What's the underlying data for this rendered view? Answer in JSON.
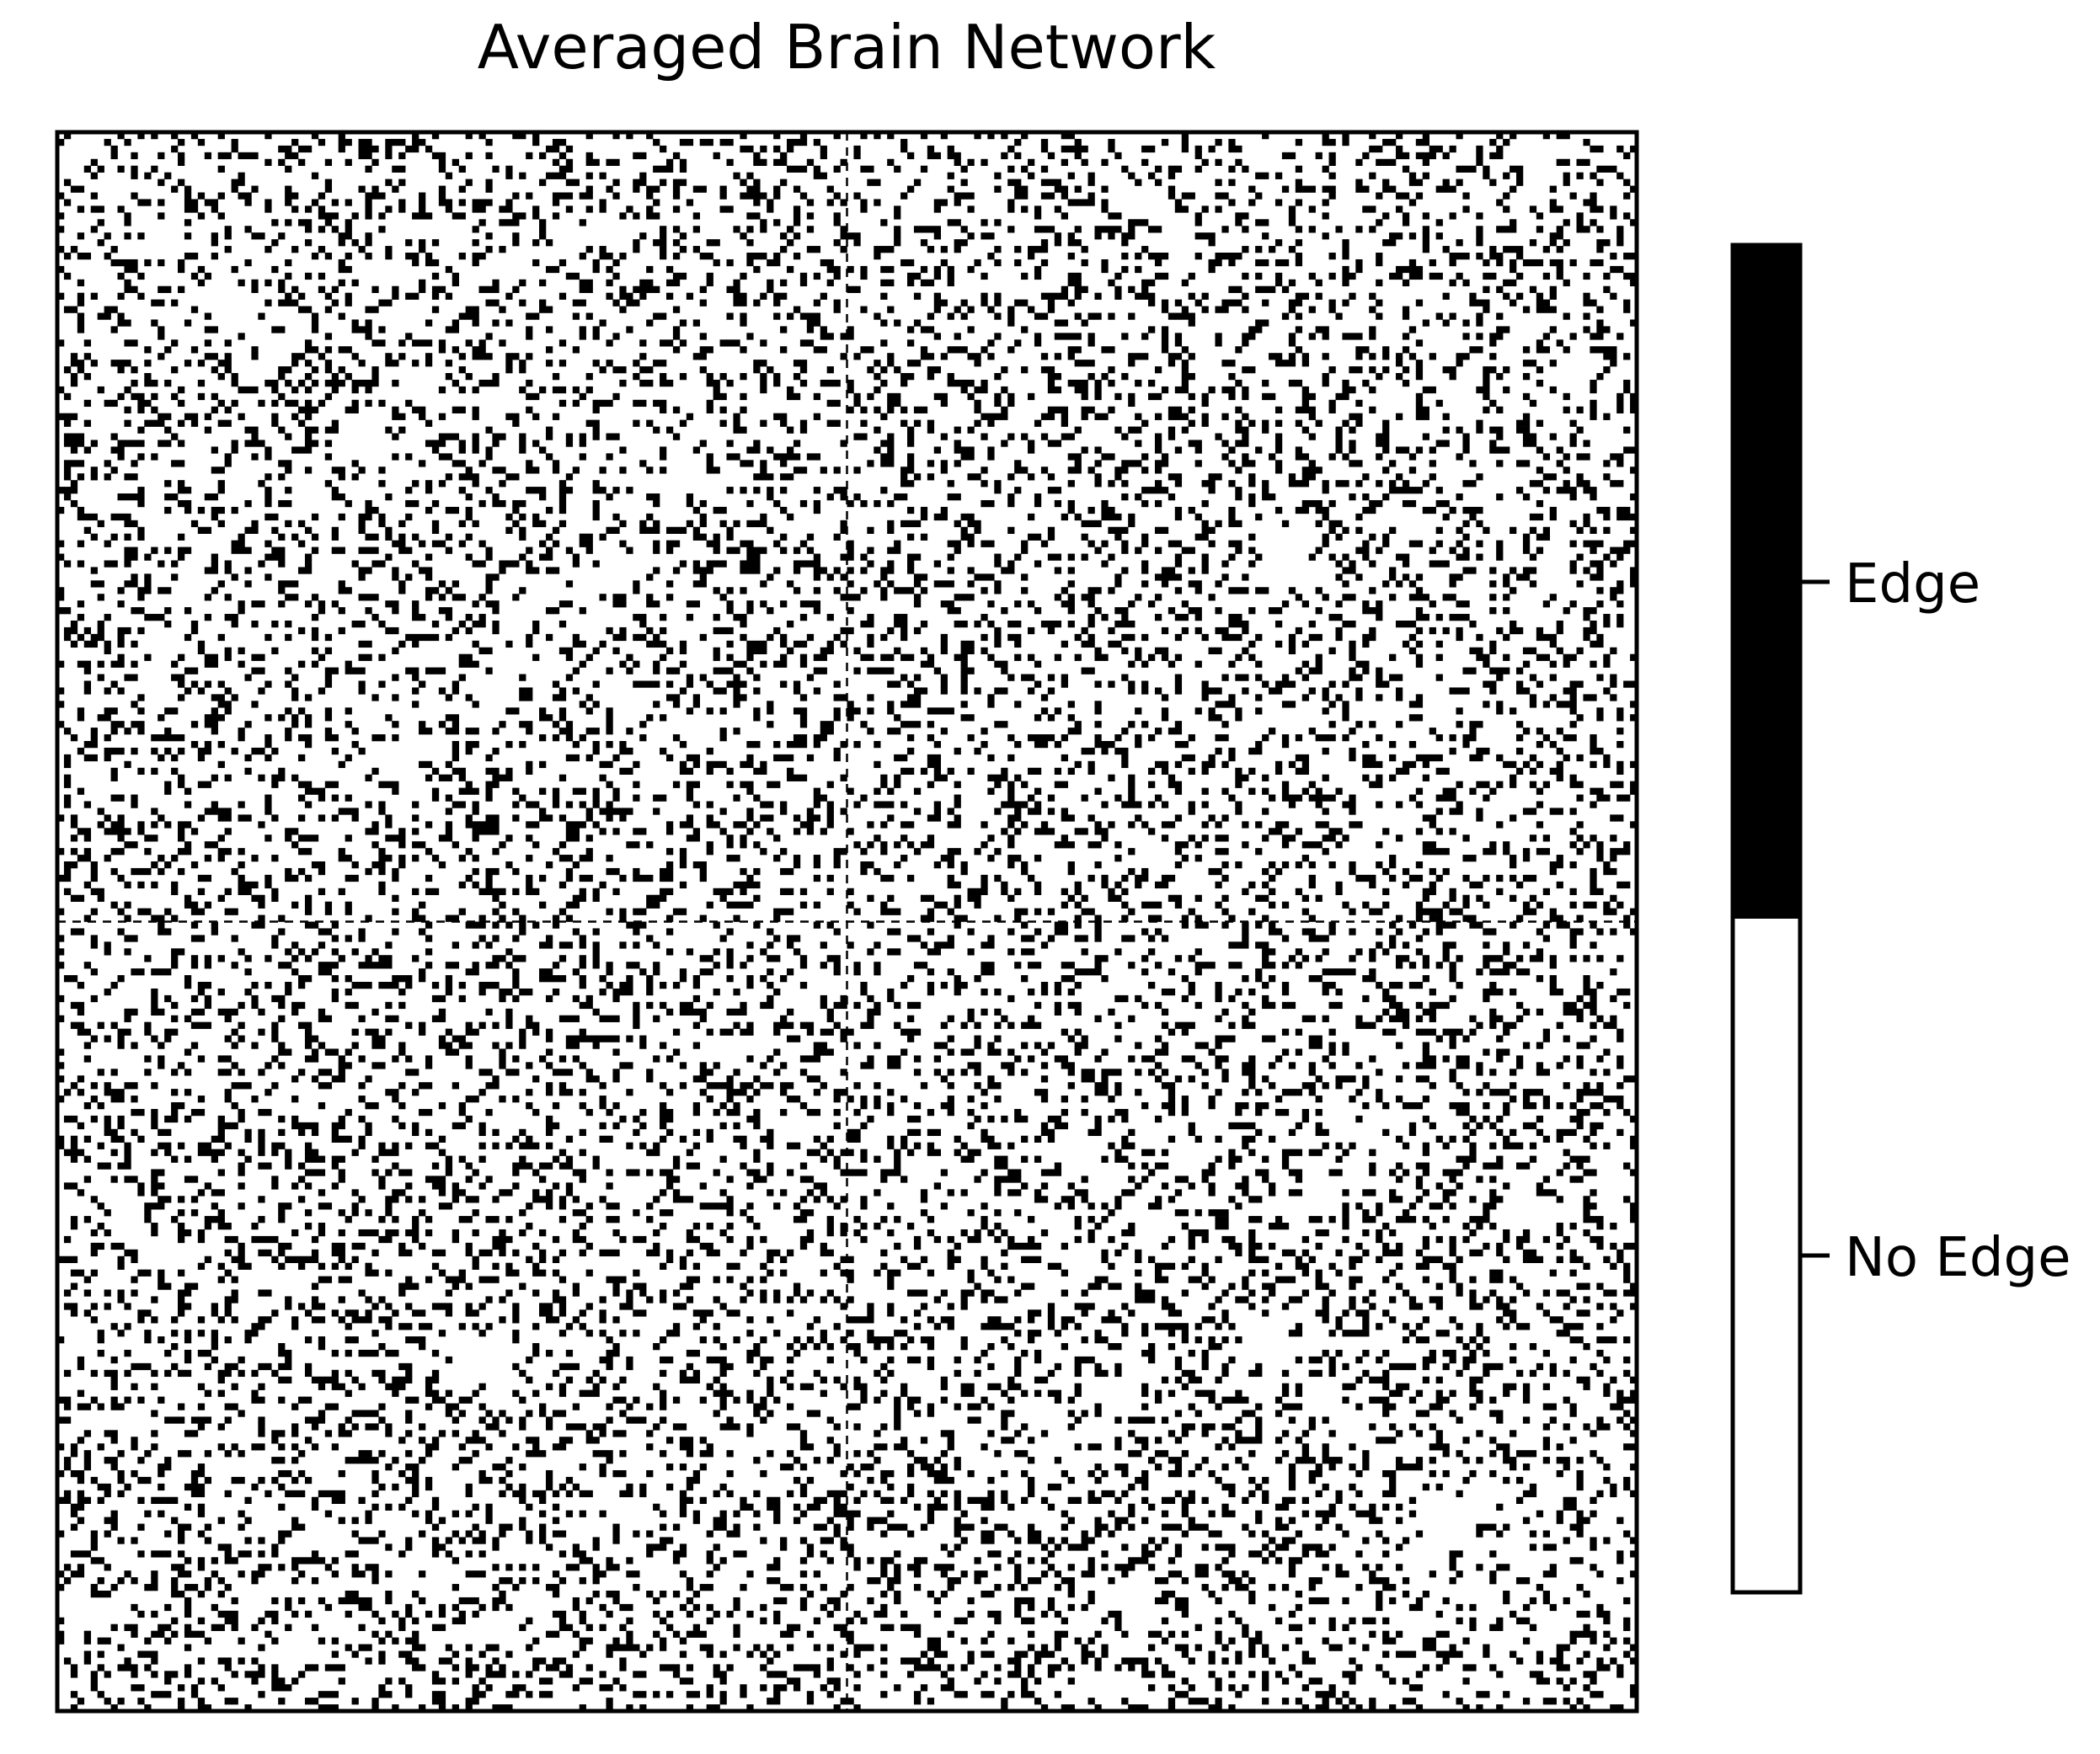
{
  "chart_data": {
    "type": "heatmap",
    "title": "Averaged Brain Network",
    "xlabel": "",
    "ylabel": "",
    "matrix_size": 236,
    "edge_density": 0.22,
    "hemisphere_split": 118,
    "value_range": [
      0,
      1
    ],
    "colorbar": {
      "ticks": [
        {
          "value": 1,
          "label": "Edge"
        },
        {
          "value": 0,
          "label": "No Edge"
        }
      ],
      "colors": {
        "edge": "#000000",
        "no_edge": "#ffffff"
      }
    },
    "grid": false,
    "divider_lines": "dashed"
  }
}
